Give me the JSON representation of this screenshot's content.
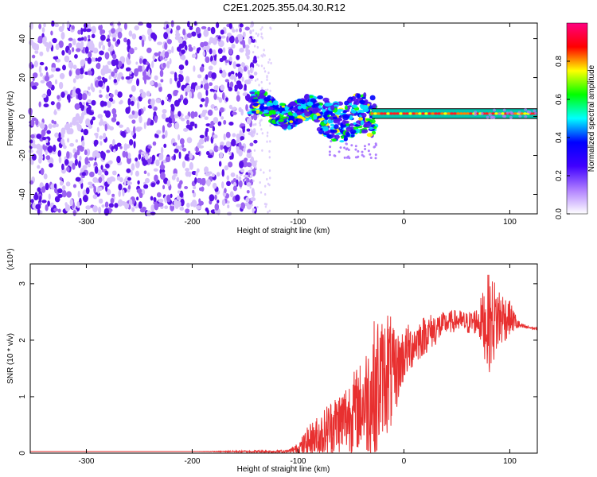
{
  "title": "C2E1.2025.355.04.30.R12",
  "chart_data": [
    {
      "type": "heatmap",
      "xlabel": "Height of straight line (km)",
      "ylabel": "Frequency (Hz)",
      "xlim": [
        -353,
        126
      ],
      "ylim": [
        -50,
        48
      ],
      "xticks": [
        -300,
        -200,
        -100,
        0,
        100
      ],
      "xtick_labels": [
        "-300",
        "-200",
        "-100",
        "0",
        "100"
      ],
      "yticks": [
        -40,
        -20,
        0,
        20,
        40
      ],
      "ytick_labels": [
        "-40",
        "-20",
        "0",
        "20",
        "40"
      ],
      "colorbar": {
        "label": "Normalized spectral amplitude",
        "range": [
          0,
          1
        ],
        "ticks": [
          0.0,
          0.2,
          0.4,
          0.6,
          0.8
        ],
        "tick_labels": [
          "0.0",
          "0.2",
          "0.4",
          "0.6",
          "0.8"
        ],
        "colormap": [
          "#ffffff",
          "#b080ff",
          "#4000ff",
          "#0000ff",
          "#00ffff",
          "#00ff00",
          "#ffff00",
          "#ff0000",
          "#ff0080"
        ]
      },
      "features": [
        {
          "region": "noise",
          "x": [
            -353,
            -140
          ],
          "y": [
            -50,
            48
          ],
          "amplitude": 0.1
        },
        {
          "region": "signal",
          "x": [
            -145,
            -30
          ],
          "y": [
            -10,
            15
          ],
          "amplitude": 0.4
        },
        {
          "region": "carrier",
          "x": [
            -30,
            126
          ],
          "y": [
            0,
            3
          ],
          "amplitude": 0.85
        }
      ],
      "grid": false,
      "legend": "none"
    },
    {
      "type": "line",
      "xlabel": "Height of straight line (km)",
      "ylabel": "SNR (10 * v/v)",
      "multiplier": "(x10⁴)",
      "xlim": [
        -353,
        126
      ],
      "ylim": [
        0,
        3.35
      ],
      "xticks": [
        -300,
        -200,
        -100,
        0,
        100
      ],
      "xtick_labels": [
        "-300",
        "-200",
        "-100",
        "0",
        "100"
      ],
      "yticks": [
        0,
        1,
        2,
        3
      ],
      "ytick_labels": [
        "0",
        "1",
        "2",
        "3"
      ],
      "series_color": "#e83030",
      "x": [
        -353,
        -300,
        -200,
        -110,
        -100,
        -90,
        -80,
        -70,
        -60,
        -50,
        -40,
        -30,
        -25,
        -20,
        -15,
        -10,
        -5,
        0,
        10,
        20,
        30,
        40,
        50,
        60,
        70,
        80,
        90,
        100,
        110,
        126
      ],
      "values": [
        0.03,
        0.03,
        0.03,
        0.03,
        0.08,
        0.2,
        0.3,
        0.45,
        0.55,
        0.7,
        0.85,
        1.05,
        1.2,
        1.35,
        1.5,
        1.3,
        1.55,
        1.75,
        1.95,
        2.1,
        2.2,
        2.3,
        2.35,
        2.3,
        2.35,
        2.3,
        2.4,
        2.4,
        2.25,
        2.2
      ],
      "noise": [
        0,
        0,
        0,
        0.03,
        0.1,
        0.3,
        0.4,
        0.5,
        0.6,
        0.7,
        0.8,
        1.2,
        1.4,
        1.0,
        1.2,
        0.9,
        0.6,
        0.5,
        0.4,
        0.35,
        0.3,
        0.2,
        0.2,
        0.2,
        0.25,
        0.9,
        0.6,
        0.3,
        0.05,
        0.02
      ],
      "grid": false,
      "legend": "none"
    }
  ]
}
